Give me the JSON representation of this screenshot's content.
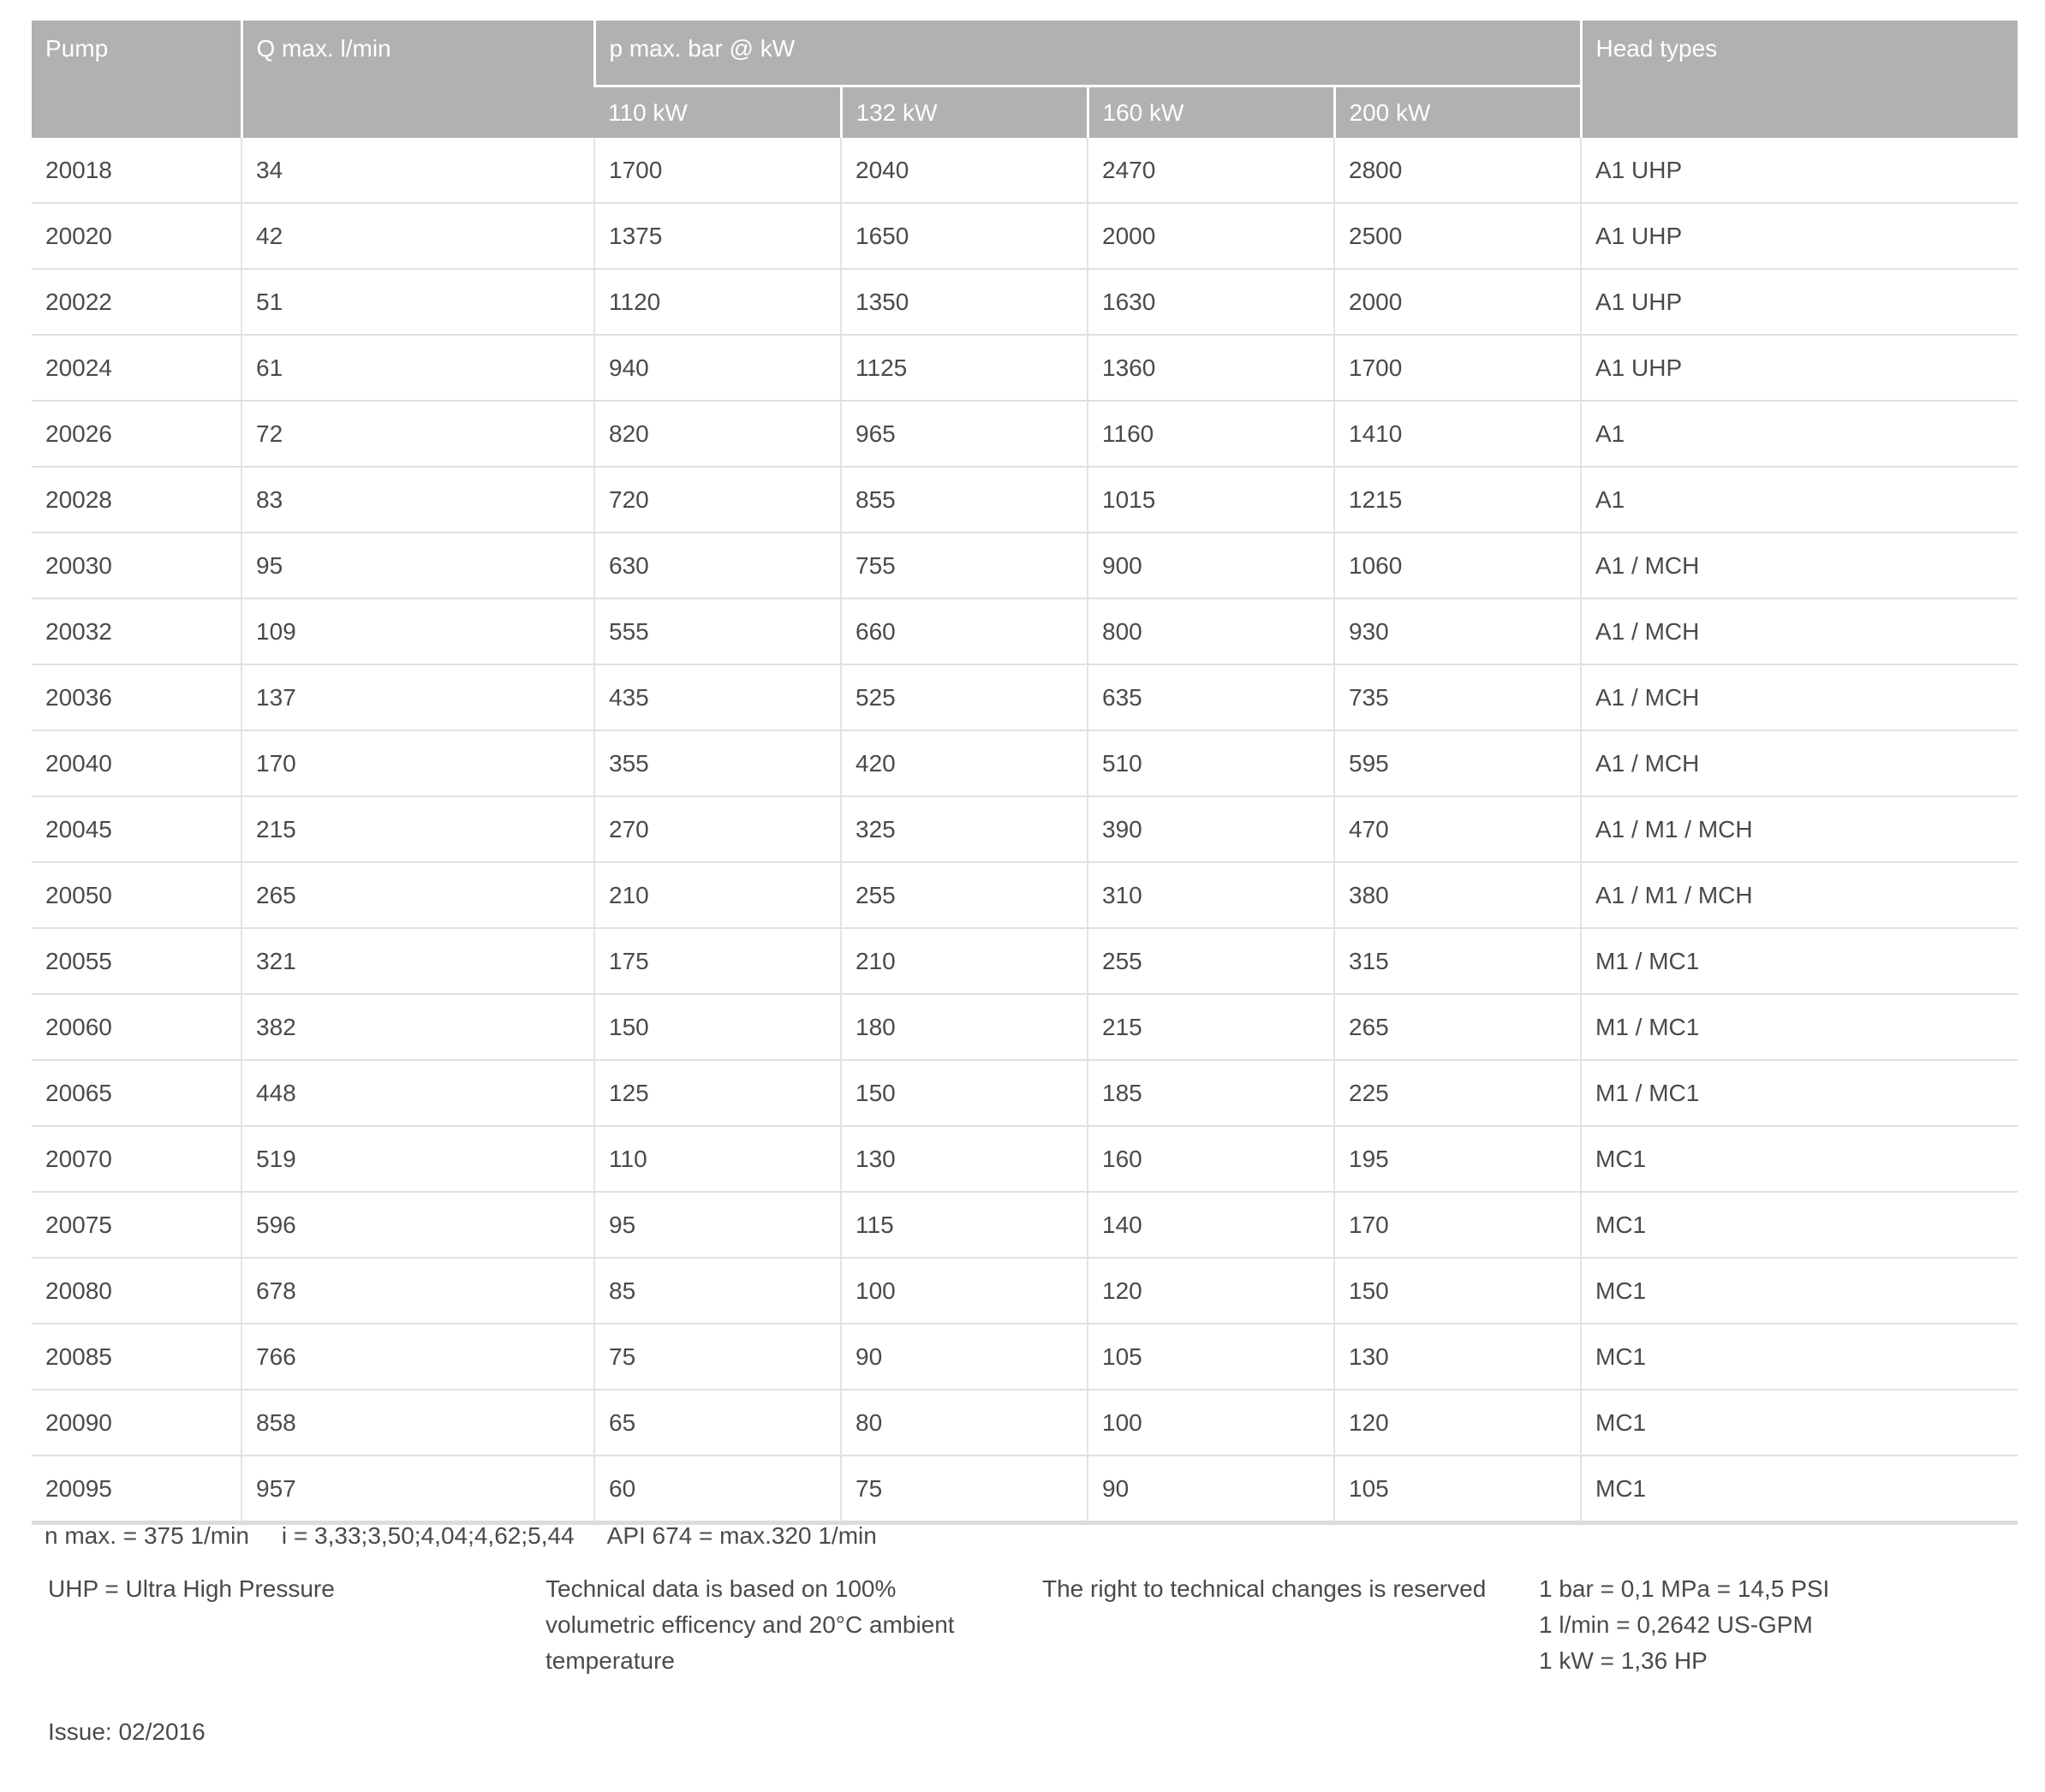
{
  "header": {
    "pump": "Pump",
    "q_max": "Q max. l/min",
    "p_max": "p max. bar @ kW",
    "head_types": "Head types",
    "power": [
      "110 kW",
      "132 kW",
      "160 kW",
      "200 kW"
    ]
  },
  "rows": [
    [
      "20018",
      "34",
      "1700",
      "2040",
      "2470",
      "2800",
      "A1 UHP"
    ],
    [
      "20020",
      "42",
      "1375",
      "1650",
      "2000",
      "2500",
      "A1 UHP"
    ],
    [
      "20022",
      "51",
      "1120",
      "1350",
      "1630",
      "2000",
      "A1 UHP"
    ],
    [
      "20024",
      "61",
      "940",
      "1125",
      "1360",
      "1700",
      "A1 UHP"
    ],
    [
      "20026",
      "72",
      "820",
      "965",
      "1160",
      "1410",
      "A1"
    ],
    [
      "20028",
      "83",
      "720",
      "855",
      "1015",
      "1215",
      "A1"
    ],
    [
      "20030",
      "95",
      "630",
      "755",
      "900",
      "1060",
      "A1 / MCH"
    ],
    [
      "20032",
      "109",
      "555",
      "660",
      "800",
      "930",
      "A1 / MCH"
    ],
    [
      "20036",
      "137",
      "435",
      "525",
      "635",
      "735",
      "A1 / MCH"
    ],
    [
      "20040",
      "170",
      "355",
      "420",
      "510",
      "595",
      "A1 / MCH"
    ],
    [
      "20045",
      "215",
      "270",
      "325",
      "390",
      "470",
      "A1 / M1 / MCH"
    ],
    [
      "20050",
      "265",
      "210",
      "255",
      "310",
      "380",
      "A1 / M1 / MCH"
    ],
    [
      "20055",
      "321",
      "175",
      "210",
      "255",
      "315",
      "M1 / MC1"
    ],
    [
      "20060",
      "382",
      "150",
      "180",
      "215",
      "265",
      "M1 / MC1"
    ],
    [
      "20065",
      "448",
      "125",
      "150",
      "185",
      "225",
      "M1 / MC1"
    ],
    [
      "20070",
      "519",
      "110",
      "130",
      "160",
      "195",
      "MC1"
    ],
    [
      "20075",
      "596",
      "95",
      "115",
      "140",
      "170",
      "MC1"
    ],
    [
      "20080",
      "678",
      "85",
      "100",
      "120",
      "150",
      "MC1"
    ],
    [
      "20085",
      "766",
      "75",
      "90",
      "105",
      "130",
      "MC1"
    ],
    [
      "20090",
      "858",
      "65",
      "80",
      "100",
      "120",
      "MC1"
    ],
    [
      "20095",
      "957",
      "60",
      "75",
      "90",
      "105",
      "MC1"
    ]
  ],
  "notes": {
    "line1": [
      "n max. = 375 1/min",
      "i = 3,33;3,50;4,04;4,62;5,44",
      "API 674 = max.320 1/min"
    ],
    "uhp": "UHP = Ultra High Pressure",
    "technical": [
      "Technical data is based on 100%",
      "volumetric efficency and 20°C ambient",
      "temperature"
    ],
    "rights": "The right to technical changes is reserved",
    "conversions": [
      "1 bar = 0,1 MPa = 14,5 PSI",
      "1 l/min = 0,2642 US-GPM",
      "1 kW = 1,36 HP"
    ],
    "issue": "Issue: 02/2016"
  }
}
